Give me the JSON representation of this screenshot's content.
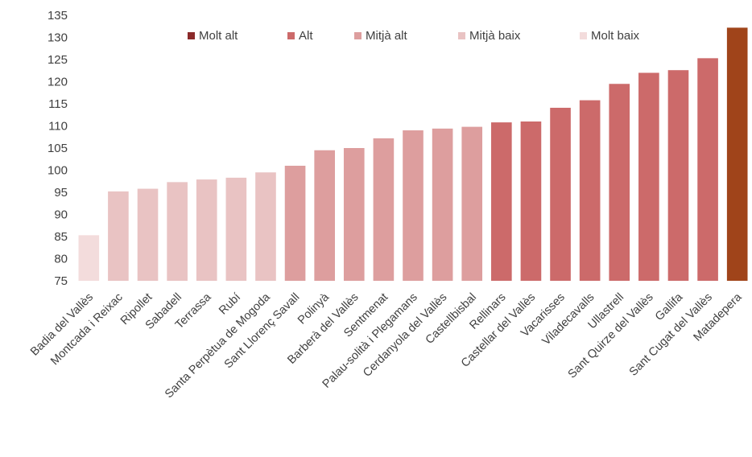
{
  "chart_data": {
    "type": "bar",
    "title": "",
    "xlabel": "",
    "ylabel": "",
    "ylim": [
      75,
      135
    ],
    "yticks": [
      75,
      80,
      85,
      90,
      95,
      100,
      105,
      110,
      115,
      120,
      125,
      130,
      135
    ],
    "grid": false,
    "legend_position": "top-center",
    "legend": [
      {
        "label": "Molt alt",
        "level": "molt_alt",
        "color": "#8b2a2a"
      },
      {
        "label": "Alt",
        "level": "alt",
        "color": "#cc6a6a"
      },
      {
        "label": "Mitjà alt",
        "level": "mitja_alt",
        "color": "#dd9e9e"
      },
      {
        "label": "Mitjà baix",
        "level": "mitja_baix",
        "color": "#e9c3c3"
      },
      {
        "label": "Molt baix",
        "level": "molt_baix",
        "color": "#f3dcdc"
      }
    ],
    "highlight_color": "#a0441a",
    "categories": [
      "Badia del Vallès",
      "Montcada i Reixac",
      "Ripollet",
      "Sabadell",
      "Terrassa",
      "Rubí",
      "Santa Perpètua de Mogoda",
      "Sant Llorenç Savall",
      "Polinyà",
      "Barberà del Vallès",
      "Sentmenat",
      "Palau-solità i Plegamans",
      "Cerdanyola del Vallès",
      "Castellbisbal",
      "Rellinars",
      "Castellar del Vallès",
      "Vacarisses",
      "Viladecavalls",
      "Ullastrell",
      "Sant Quirze del Vallès",
      "Gallifa",
      "Sant Cugat del Vallès",
      "Matadepera"
    ],
    "values": [
      85.3,
      95.2,
      95.8,
      97.3,
      97.9,
      98.3,
      99.5,
      101.0,
      104.5,
      105.0,
      107.2,
      109.0,
      109.4,
      109.8,
      110.8,
      111.0,
      114.1,
      115.8,
      119.5,
      122.0,
      122.6,
      125.3,
      132.2
    ],
    "levels": [
      "molt_baix",
      "mitja_baix",
      "mitja_baix",
      "mitja_baix",
      "mitja_baix",
      "mitja_baix",
      "mitja_baix",
      "mitja_alt",
      "mitja_alt",
      "mitja_alt",
      "mitja_alt",
      "mitja_alt",
      "mitja_alt",
      "mitja_alt",
      "alt",
      "alt",
      "alt",
      "alt",
      "alt",
      "alt",
      "alt",
      "alt",
      "highlight"
    ]
  }
}
